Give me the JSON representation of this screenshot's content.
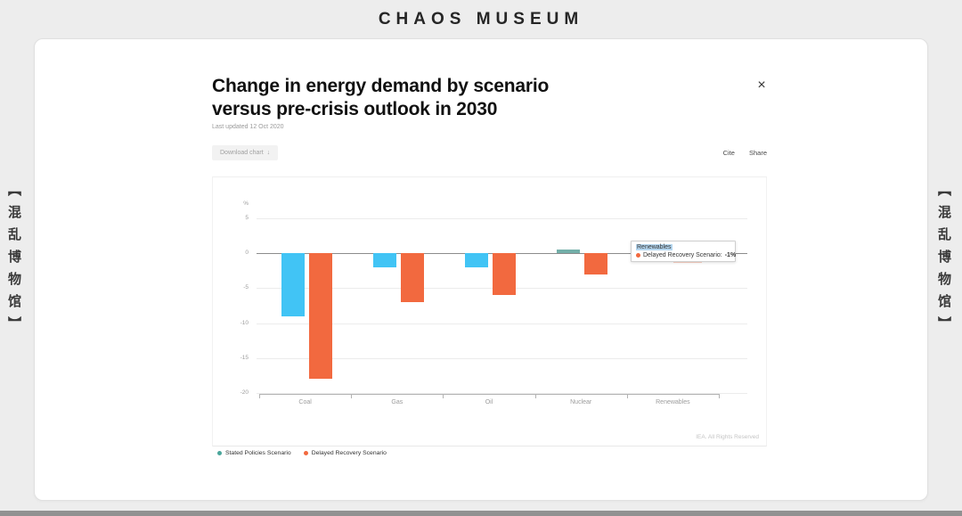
{
  "page": {
    "site_title": "CHAOS MUSEUM",
    "side_watermark": "【混乱博物馆】"
  },
  "modal": {
    "title": "Change in energy demand by scenario versus pre-crisis outlook in 2030",
    "last_updated": "Last updated 12 Oct 2020",
    "download_label": "Download chart",
    "download_icon": "↓",
    "cite": "Cite",
    "share": "Share",
    "close_icon": "×",
    "credit": "IEA. All Rights Reserved"
  },
  "chart_data": {
    "type": "bar",
    "title": "Change in energy demand by scenario versus pre-crisis outlook in 2030",
    "unit": "%",
    "categories": [
      "Coal",
      "Gas",
      "Oil",
      "Nuclear",
      "Renewables"
    ],
    "series": [
      {
        "name": "Stated Policies Scenario",
        "color": "#41c4f5",
        "legend_color": "#4aa69b",
        "point_colors": [
          null,
          null,
          null,
          "#73afa9",
          null
        ],
        "values": [
          -9,
          -2,
          -2,
          0.5,
          -0.5
        ]
      },
      {
        "name": "Delayed Recovery Scenario",
        "color": "#f2693f",
        "values": [
          -18,
          -7,
          -6,
          -3,
          -1
        ]
      }
    ],
    "ylim": [
      -20,
      5
    ],
    "yticks": [
      5,
      0,
      -5,
      -10,
      -15,
      -20
    ],
    "grid": true,
    "legend_position": "bottom-left",
    "tooltip": {
      "category": "Renewables",
      "label": "Delayed Recovery Scenario:",
      "value": "-1%"
    }
  }
}
